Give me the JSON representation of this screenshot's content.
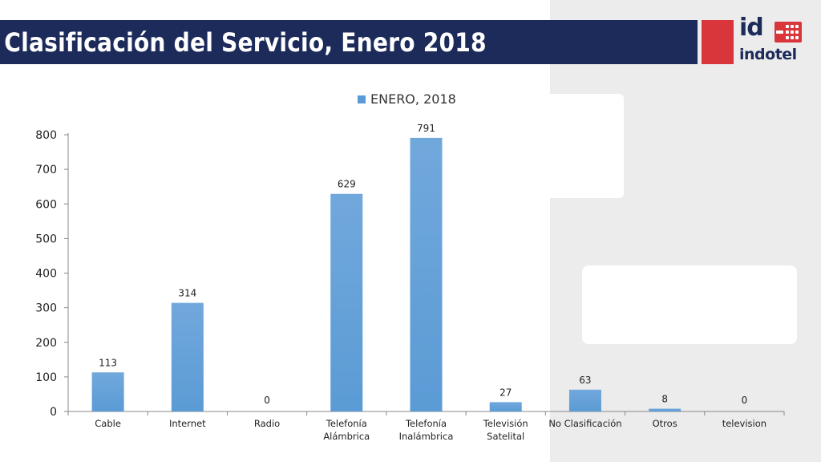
{
  "header": {
    "title": "Clasificación del Servicio, Enero 2018",
    "logo_text_top": "id",
    "logo_text_bottom": "indotel"
  },
  "colors": {
    "title_bar": "#1c2b5a",
    "accent_red": "#d8363b",
    "bar": "#5b9bd5"
  },
  "chart_data": {
    "type": "bar",
    "categories": [
      "Cable",
      "Internet",
      "Radio",
      "Telefonía Alámbrica",
      "Telefonía Inalámbrica",
      "Televisión Satelital",
      "No Clasificación",
      "Otros",
      "television"
    ],
    "category_lines": [
      [
        "Cable"
      ],
      [
        "Internet"
      ],
      [
        "Radio"
      ],
      [
        "Telefonía",
        "Alámbrica"
      ],
      [
        "Telefonía",
        "Inalámbrica"
      ],
      [
        "Televisión",
        "Satelital"
      ],
      [
        "No Clasificación"
      ],
      [
        "Otros"
      ],
      [
        "television"
      ]
    ],
    "series": [
      {
        "name": "ENERO, 2018",
        "values": [
          113,
          314,
          0,
          629,
          791,
          27,
          63,
          8,
          0
        ]
      }
    ],
    "ylim": [
      0,
      800
    ],
    "yticks": [
      0,
      100,
      200,
      300,
      400,
      500,
      600,
      700,
      800
    ],
    "legend_position": "top",
    "grid": false,
    "data_labels": true
  }
}
